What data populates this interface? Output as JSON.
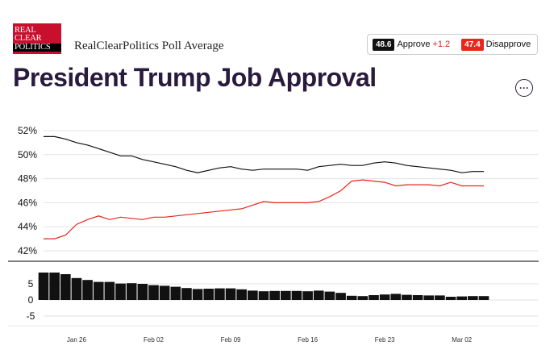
{
  "header": {
    "logo_lines": [
      "REAL",
      "CLEAR",
      "POLITICS"
    ],
    "subtitle": "RealClearPolitics Poll Average",
    "title": "President Trump Job Approval",
    "menu_icon": "more-horizontal-icon",
    "menu_label": "···"
  },
  "legend": {
    "approve_value": "48.6",
    "approve_label": "Approve",
    "approve_change": "+1.2",
    "disapprove_value": "47.4",
    "disapprove_label": "Disapprove"
  },
  "colors": {
    "approve": "#111111",
    "disapprove": "#e8261c",
    "spread_bar": "#111111",
    "logo": "#c8102e",
    "title": "#2a1a3e",
    "grid": "#e3e3e3"
  },
  "chart_data": [
    {
      "type": "line",
      "x": [
        "Jan 23",
        "Jan 24",
        "Jan 25",
        "Jan 26",
        "Jan 27",
        "Jan 28",
        "Jan 29",
        "Jan 30",
        "Jan 31",
        "Feb 01",
        "Feb 02",
        "Feb 03",
        "Feb 04",
        "Feb 05",
        "Feb 06",
        "Feb 07",
        "Feb 08",
        "Feb 09",
        "Feb 10",
        "Feb 11",
        "Feb 12",
        "Feb 13",
        "Feb 14",
        "Feb 15",
        "Feb 16",
        "Feb 17",
        "Feb 18",
        "Feb 19",
        "Feb 20",
        "Feb 21",
        "Feb 22",
        "Feb 23",
        "Feb 24",
        "Feb 25",
        "Feb 26",
        "Feb 27",
        "Feb 28",
        "Mar 01",
        "Mar 02",
        "Mar 03",
        "Mar 04"
      ],
      "series": [
        {
          "name": "Approve",
          "values": [
            51.5,
            51.5,
            51.3,
            51.0,
            50.8,
            50.5,
            50.2,
            49.9,
            49.9,
            49.6,
            49.4,
            49.2,
            49.0,
            48.7,
            48.5,
            48.7,
            48.9,
            49.0,
            48.8,
            48.7,
            48.8,
            48.8,
            48.8,
            48.8,
            48.7,
            49.0,
            49.1,
            49.2,
            49.1,
            49.1,
            49.3,
            49.4,
            49.3,
            49.1,
            49.0,
            48.9,
            48.8,
            48.7,
            48.5,
            48.6,
            48.6
          ]
        },
        {
          "name": "Disapprove",
          "values": [
            43.0,
            43.0,
            43.3,
            44.2,
            44.6,
            44.9,
            44.6,
            44.8,
            44.7,
            44.6,
            44.8,
            44.8,
            44.9,
            45.0,
            45.1,
            45.2,
            45.3,
            45.4,
            45.5,
            45.8,
            46.1,
            46.0,
            46.0,
            46.0,
            46.0,
            46.1,
            46.5,
            47.0,
            47.8,
            47.9,
            47.8,
            47.7,
            47.4,
            47.5,
            47.5,
            47.5,
            47.4,
            47.7,
            47.4,
            47.4,
            47.4
          ]
        }
      ],
      "ylim": [
        42,
        52
      ],
      "yticks": [
        "52%",
        "50%",
        "48%",
        "46%",
        "44%",
        "42%"
      ],
      "grid": true
    },
    {
      "type": "bar",
      "x": [
        "Jan 23",
        "Jan 24",
        "Jan 25",
        "Jan 26",
        "Jan 27",
        "Jan 28",
        "Jan 29",
        "Jan 30",
        "Jan 31",
        "Feb 01",
        "Feb 02",
        "Feb 03",
        "Feb 04",
        "Feb 05",
        "Feb 06",
        "Feb 07",
        "Feb 08",
        "Feb 09",
        "Feb 10",
        "Feb 11",
        "Feb 12",
        "Feb 13",
        "Feb 14",
        "Feb 15",
        "Feb 16",
        "Feb 17",
        "Feb 18",
        "Feb 19",
        "Feb 20",
        "Feb 21",
        "Feb 22",
        "Feb 23",
        "Feb 24",
        "Feb 25",
        "Feb 26",
        "Feb 27",
        "Feb 28",
        "Mar 01",
        "Mar 02",
        "Mar 03",
        "Mar 04"
      ],
      "values": [
        8.5,
        8.5,
        8.0,
        6.8,
        6.2,
        5.6,
        5.6,
        5.1,
        5.2,
        5.0,
        4.6,
        4.4,
        4.1,
        3.7,
        3.4,
        3.5,
        3.6,
        3.6,
        3.3,
        2.9,
        2.7,
        2.8,
        2.8,
        2.8,
        2.7,
        2.9,
        2.6,
        2.2,
        1.3,
        1.2,
        1.5,
        1.7,
        1.9,
        1.6,
        1.5,
        1.4,
        1.4,
        1.0,
        1.1,
        1.2,
        1.2
      ],
      "ylim": [
        -5,
        10
      ],
      "yticks": [
        "5",
        "0",
        "-5"
      ],
      "xticks": [
        "Jan 26",
        "Feb 02",
        "Feb 09",
        "Feb 16",
        "Feb 23",
        "Mar 02"
      ],
      "grid": true
    }
  ]
}
